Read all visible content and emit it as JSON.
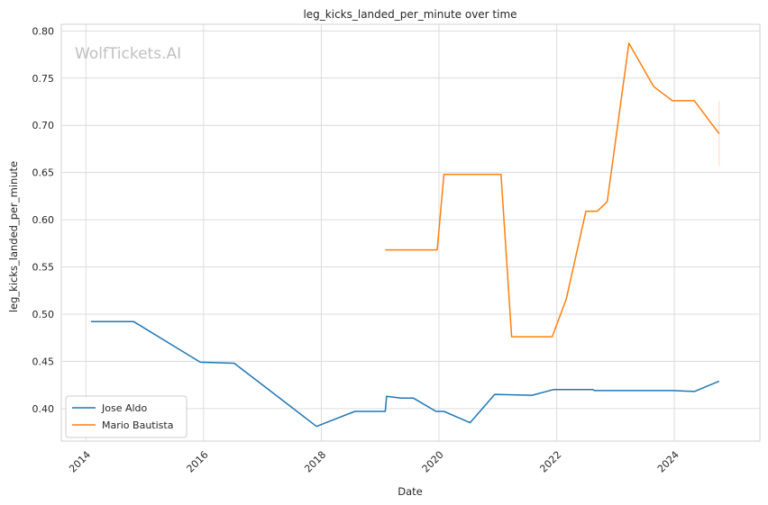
{
  "chart_data": {
    "type": "line",
    "title": "leg_kicks_landed_per_minute over time",
    "xlabel": "Date",
    "ylabel": "leg_kicks_landed_per_minute",
    "watermark": "WolfTickets.AI",
    "xlim": [
      "2013-08-01",
      "2025-06-15"
    ],
    "ylim": [
      0.3655,
      0.807
    ],
    "x_ticks": [
      "2014-01-01",
      "2016-01-01",
      "2018-01-01",
      "2020-01-01",
      "2022-01-01",
      "2024-01-01"
    ],
    "x_tick_labels": [
      "2014",
      "2016",
      "2018",
      "2020",
      "2022",
      "2024"
    ],
    "y_ticks": [
      0.4,
      0.45,
      0.5,
      0.55,
      0.6,
      0.65,
      0.7,
      0.75,
      0.8
    ],
    "y_tick_labels": [
      "0.40",
      "0.45",
      "0.50",
      "0.55",
      "0.60",
      "0.65",
      "0.70",
      "0.75",
      "0.80"
    ],
    "grid": true,
    "legend_position": "lower-left",
    "series": [
      {
        "name": "Jose Aldo",
        "color": "#1f77b4",
        "points": [
          [
            "2014-02-01",
            0.492
          ],
          [
            "2014-10-25",
            0.492
          ],
          [
            "2015-12-12",
            0.449
          ],
          [
            "2016-07-09",
            0.448
          ],
          [
            "2017-06-03",
            0.405
          ],
          [
            "2017-12-02",
            0.381
          ],
          [
            "2018-07-28",
            0.397
          ],
          [
            "2019-02-02",
            0.397
          ],
          [
            "2019-02-10",
            0.413
          ],
          [
            "2019-05-11",
            0.411
          ],
          [
            "2019-07-27",
            0.411
          ],
          [
            "2019-12-14",
            0.397
          ],
          [
            "2020-02-01",
            0.397
          ],
          [
            "2020-07-12",
            0.385
          ],
          [
            "2020-12-12",
            0.415
          ],
          [
            "2021-08-01",
            0.414
          ],
          [
            "2021-12-11",
            0.42
          ],
          [
            "2022-08-13",
            0.42
          ],
          [
            "2022-08-23",
            0.419
          ],
          [
            "2023-10-01",
            0.419
          ],
          [
            "2024-01-01",
            0.419
          ],
          [
            "2024-05-04",
            0.418
          ],
          [
            "2024-10-05",
            0.429
          ]
        ]
      },
      {
        "name": "Mario Bautista",
        "color": "#ff7f0e",
        "points": [
          [
            "2019-02-02",
            0.568
          ],
          [
            "2019-12-21",
            0.568
          ],
          [
            "2020-02-01",
            0.648
          ],
          [
            "2021-01-20",
            0.648
          ],
          [
            "2021-03-27",
            0.476
          ],
          [
            "2021-12-04",
            0.476
          ],
          [
            "2022-03-01",
            0.516
          ],
          [
            "2022-07-01",
            0.609
          ],
          [
            "2022-09-10",
            0.609
          ],
          [
            "2022-11-10",
            0.619
          ],
          [
            "2023-03-25",
            0.787
          ],
          [
            "2023-08-26",
            0.741
          ],
          [
            "2023-12-20",
            0.726
          ],
          [
            "2024-05-04",
            0.726
          ],
          [
            "2024-10-05",
            0.691
          ]
        ],
        "end_band": {
          "x": "2024-10-05",
          "low": 0.657,
          "high": 0.726
        }
      }
    ]
  }
}
